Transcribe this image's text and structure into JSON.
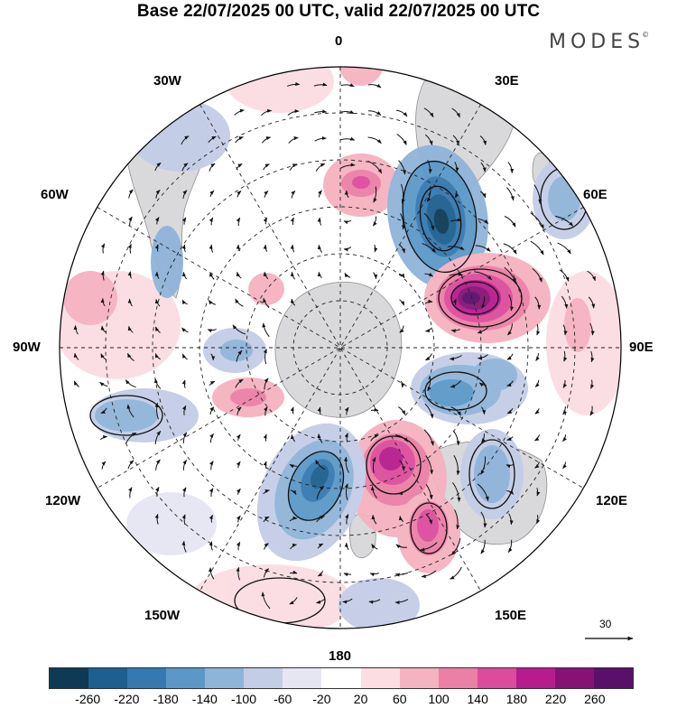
{
  "title": "Base 22/07/2025 00 UTC, valid 22/07/2025 00 UTC",
  "logo": "MODES",
  "logo_mark": "©",
  "longitude_labels": {
    "north": "0",
    "e30": "30E",
    "e60": "60E",
    "e90": "90E",
    "e120": "120E",
    "e150": "150E",
    "south": "180",
    "w150": "150W",
    "w120": "120W",
    "w90": "90W",
    "w60": "60W",
    "w30": "30W"
  },
  "reference_vector": {
    "value": "30"
  },
  "colorbar": {
    "colors": [
      "#0e3a56",
      "#1d5f8f",
      "#3579b0",
      "#5b98c8",
      "#8fb4d9",
      "#c3cde6",
      "#e6e6f3",
      "#ffffff",
      "#fbdde2",
      "#f5b2c0",
      "#eb7fa6",
      "#dc4b9c",
      "#b61c8e",
      "#861276",
      "#5a0f6a"
    ],
    "ticks": [
      "-260",
      "-220",
      "-180",
      "-140",
      "-100",
      "-60",
      "-20",
      "20",
      "60",
      "100",
      "140",
      "180",
      "220",
      "260"
    ]
  },
  "anomalies": [
    {
      "name": "positive-anomaly-30e-center",
      "value": 260,
      "color": "#861276"
    },
    {
      "name": "negative-anomaly-15e",
      "value": -240,
      "color": "#1d5f8f"
    },
    {
      "name": "negative-anomaly-165w",
      "value": -220,
      "color": "#3579b0"
    },
    {
      "name": "positive-anomaly-170e",
      "value": 200,
      "color": "#b61c8e"
    },
    {
      "name": "positive-anomaly-160e",
      "value": 140,
      "color": "#dc4b9c"
    },
    {
      "name": "negative-anomaly-105e",
      "value": -140,
      "color": "#5b98c8"
    },
    {
      "name": "positive-anomaly-0",
      "value": 140,
      "color": "#dc4b9c"
    },
    {
      "name": "negative-anomaly-125e",
      "value": -100,
      "color": "#8fb4d9"
    },
    {
      "name": "negative-anomaly-55e",
      "value": -100,
      "color": "#8fb4d9"
    },
    {
      "name": "negative-anomaly-90w",
      "value": -100,
      "color": "#8fb4d9"
    }
  ]
}
